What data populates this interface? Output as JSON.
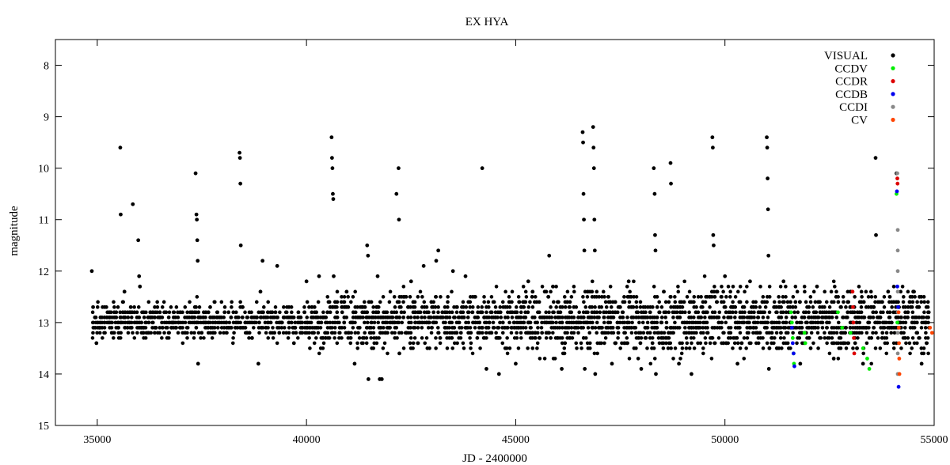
{
  "chart_data": {
    "type": "scatter",
    "title": "EX HYA",
    "xlabel": "JD - 2400000",
    "ylabel": "magnitude",
    "xlim": [
      34000,
      55000
    ],
    "ylim": [
      15,
      7.5
    ],
    "y_inverted": true,
    "grid": false,
    "legend_position": "top-right",
    "x_ticks": [
      "35000",
      "40000",
      "45000",
      "50000",
      "55000"
    ],
    "y_ticks": [
      "8",
      "9",
      "10",
      "11",
      "12",
      "13",
      "14",
      "15"
    ],
    "x_tick_values": [
      35000,
      40000,
      45000,
      50000,
      55000
    ],
    "y_tick_values": [
      8,
      9,
      10,
      11,
      12,
      13,
      14,
      15
    ],
    "series": [
      {
        "name": "VISUAL",
        "color": "#000000",
        "points": [
          [
            34870,
            12.0
          ],
          [
            34900,
            12.7
          ],
          [
            34950,
            12.9
          ],
          [
            34980,
            13.4
          ],
          [
            35050,
            13.1
          ],
          [
            35300,
            12.9
          ],
          [
            35550,
            9.6
          ],
          [
            35560,
            10.9
          ],
          [
            35650,
            12.4
          ],
          [
            35800,
            12.7
          ],
          [
            35850,
            10.7
          ],
          [
            35980,
            11.4
          ],
          [
            36000,
            12.1
          ],
          [
            36020,
            12.3
          ],
          [
            36100,
            13.2
          ],
          [
            36400,
            13.1
          ],
          [
            36800,
            13.0
          ],
          [
            37350,
            10.1
          ],
          [
            37370,
            10.9
          ],
          [
            37380,
            11.0
          ],
          [
            37390,
            11.4
          ],
          [
            37400,
            11.8
          ],
          [
            37410,
            13.8
          ],
          [
            37800,
            12.6
          ],
          [
            38400,
            9.7
          ],
          [
            38410,
            9.8
          ],
          [
            38420,
            10.3
          ],
          [
            38430,
            11.5
          ],
          [
            38700,
            13.3
          ],
          [
            38850,
            13.8
          ],
          [
            38900,
            12.4
          ],
          [
            38950,
            11.8
          ],
          [
            39300,
            11.9
          ],
          [
            39700,
            13.4
          ],
          [
            40000,
            12.2
          ],
          [
            40300,
            12.1
          ],
          [
            40600,
            9.4
          ],
          [
            40610,
            9.8
          ],
          [
            40620,
            10.0
          ],
          [
            40630,
            10.5
          ],
          [
            40640,
            10.6
          ],
          [
            40650,
            12.1
          ],
          [
            40900,
            13.0
          ],
          [
            41150,
            13.8
          ],
          [
            41450,
            11.5
          ],
          [
            41470,
            11.7
          ],
          [
            41480,
            14.1
          ],
          [
            41700,
            12.1
          ],
          [
            41750,
            14.1
          ],
          [
            41800,
            14.1
          ],
          [
            42150,
            10.5
          ],
          [
            42200,
            10.0
          ],
          [
            42210,
            11.0
          ],
          [
            42220,
            13.6
          ],
          [
            42500,
            12.2
          ],
          [
            42800,
            11.9
          ],
          [
            43100,
            11.8
          ],
          [
            43150,
            11.6
          ],
          [
            43500,
            12.0
          ],
          [
            43800,
            12.1
          ],
          [
            44200,
            10.0
          ],
          [
            44300,
            13.9
          ],
          [
            44600,
            14.0
          ],
          [
            45000,
            13.8
          ],
          [
            45300,
            12.2
          ],
          [
            45800,
            11.7
          ],
          [
            46100,
            13.9
          ],
          [
            46600,
            9.3
          ],
          [
            46610,
            9.5
          ],
          [
            46620,
            10.5
          ],
          [
            46630,
            11.0
          ],
          [
            46640,
            11.6
          ],
          [
            46650,
            13.9
          ],
          [
            46850,
            9.2
          ],
          [
            46860,
            9.6
          ],
          [
            46870,
            10.0
          ],
          [
            46880,
            11.0
          ],
          [
            46890,
            11.6
          ],
          [
            46900,
            14.0
          ],
          [
            47300,
            13.8
          ],
          [
            47700,
            12.2
          ],
          [
            48000,
            13.9
          ],
          [
            48300,
            10.0
          ],
          [
            48320,
            10.5
          ],
          [
            48330,
            11.3
          ],
          [
            48340,
            11.6
          ],
          [
            48350,
            14.0
          ],
          [
            48700,
            9.9
          ],
          [
            48710,
            10.3
          ],
          [
            48900,
            13.8
          ],
          [
            49200,
            14.0
          ],
          [
            49700,
            9.4
          ],
          [
            49710,
            9.6
          ],
          [
            49720,
            11.3
          ],
          [
            49730,
            11.5
          ],
          [
            50000,
            12.1
          ],
          [
            50300,
            13.8
          ],
          [
            50600,
            12.2
          ],
          [
            51000,
            9.4
          ],
          [
            51010,
            9.6
          ],
          [
            51020,
            10.2
          ],
          [
            51030,
            10.8
          ],
          [
            51040,
            11.7
          ],
          [
            51050,
            13.9
          ],
          [
            51400,
            12.2
          ],
          [
            51800,
            13.8
          ],
          [
            52200,
            12.3
          ],
          [
            52600,
            13.7
          ],
          [
            53000,
            12.4
          ],
          [
            53300,
            13.8
          ],
          [
            53600,
            9.8
          ],
          [
            53610,
            11.3
          ],
          [
            53900,
            12.4
          ],
          [
            54100,
            10.1
          ],
          [
            54500,
            12.4
          ],
          [
            54700,
            13.8
          ],
          [
            54800,
            13.0
          ]
        ]
      },
      {
        "name": "CCDV",
        "color": "#00ee00",
        "points": [
          [
            51580,
            12.8
          ],
          [
            51600,
            13.0
          ],
          [
            51620,
            13.3
          ],
          [
            51640,
            13.6
          ],
          [
            51650,
            13.8
          ],
          [
            51900,
            13.2
          ],
          [
            51920,
            13.4
          ],
          [
            52700,
            12.8
          ],
          [
            52800,
            13.1
          ],
          [
            53000,
            13.2
          ],
          [
            53300,
            13.5
          ],
          [
            53400,
            13.7
          ],
          [
            53450,
            13.9
          ],
          [
            54100,
            10.5
          ],
          [
            54120,
            13.0
          ]
        ]
      },
      {
        "name": "CCDR",
        "color": "#dd0000",
        "points": [
          [
            53050,
            12.4
          ],
          [
            53060,
            12.7
          ],
          [
            53070,
            13.0
          ],
          [
            53080,
            13.3
          ],
          [
            53090,
            13.6
          ],
          [
            54120,
            10.2
          ],
          [
            54125,
            10.3
          ]
        ]
      },
      {
        "name": "CCDB",
        "color": "#0000ee",
        "points": [
          [
            51600,
            13.1
          ],
          [
            51620,
            13.4
          ],
          [
            51640,
            13.6
          ],
          [
            51660,
            13.85
          ],
          [
            54110,
            10.45
          ],
          [
            54120,
            12.3
          ],
          [
            54140,
            12.7
          ],
          [
            54150,
            14.25
          ]
        ]
      },
      {
        "name": "CCDI",
        "color": "#888888",
        "points": [
          [
            54120,
            10.1
          ],
          [
            54130,
            11.2
          ],
          [
            54130,
            11.6
          ],
          [
            54130,
            12.0
          ],
          [
            54130,
            12.4
          ],
          [
            54130,
            12.8
          ],
          [
            54130,
            13.2
          ],
          [
            54130,
            13.6
          ],
          [
            54130,
            14.0
          ]
        ]
      },
      {
        "name": "CV",
        "color": "#ff4400",
        "points": [
          [
            54150,
            12.8
          ],
          [
            54155,
            13.1
          ],
          [
            54160,
            13.4
          ],
          [
            54165,
            13.7
          ],
          [
            54170,
            14.0
          ],
          [
            54900,
            13.1
          ],
          [
            54950,
            13.2
          ]
        ]
      }
    ]
  }
}
